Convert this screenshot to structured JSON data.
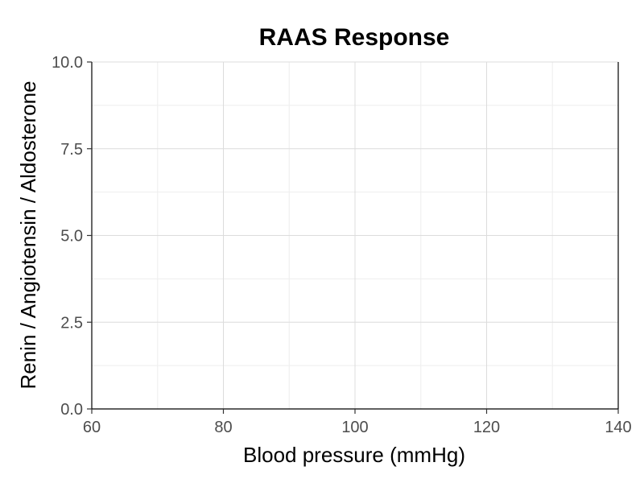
{
  "chart_data": {
    "type": "line",
    "title": "RAAS Response",
    "xlabel": "Blood pressure (mmHg)",
    "ylabel": "Renin / Angiotensin / Aldosterone",
    "xlim": [
      60,
      140
    ],
    "ylim": [
      0.0,
      10.0
    ],
    "x_ticks": [
      60,
      80,
      100,
      120,
      140
    ],
    "x_tick_labels": [
      "60",
      "80",
      "100",
      "120",
      "140"
    ],
    "y_ticks": [
      0.0,
      2.5,
      5.0,
      7.5,
      10.0
    ],
    "y_tick_labels": [
      "0.0",
      "2.5",
      "5.0",
      "7.5",
      "10.0"
    ],
    "grid": true,
    "series": []
  }
}
